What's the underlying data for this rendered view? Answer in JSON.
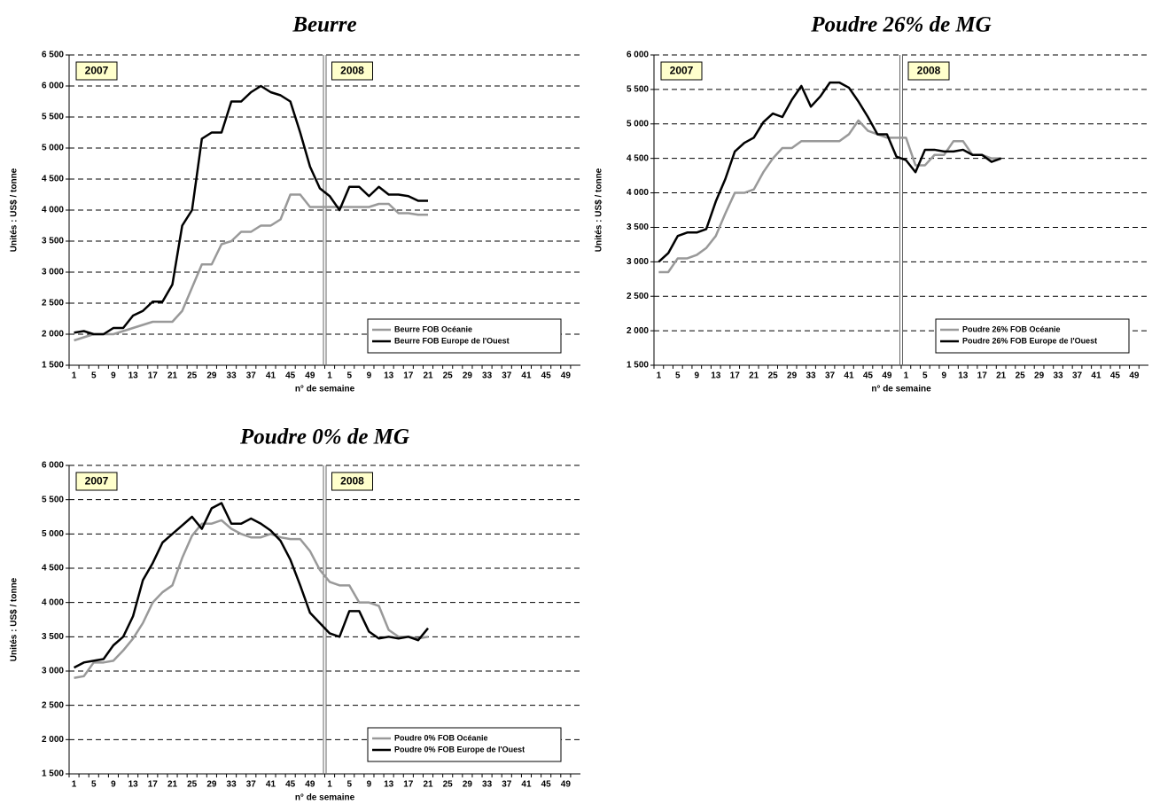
{
  "chart_data": [
    {
      "type": "line",
      "title": "Beurre",
      "x_label": "n° de semaine",
      "y_label": "Unités : US$ / tonne",
      "categories": [
        1,
        null,
        5,
        null,
        9,
        null,
        13,
        null,
        17,
        null,
        21,
        null,
        25,
        null,
        29,
        null,
        33,
        null,
        37,
        null,
        41,
        null,
        45,
        null,
        49,
        null,
        1,
        null,
        5,
        null,
        9,
        null,
        13,
        null,
        17,
        null,
        21,
        null,
        25,
        null,
        29,
        null,
        33,
        null,
        37,
        null,
        41,
        null,
        45,
        null,
        49,
        null
      ],
      "annotations": [
        "2007",
        "2008"
      ],
      "ylim": [
        1500,
        6500
      ],
      "yticks": [
        {
          "value": 1500,
          "label": "1 500"
        },
        {
          "value": 2000,
          "label": "2 000"
        },
        {
          "value": 2500,
          "label": "2 500"
        },
        {
          "value": 3000,
          "label": "3 000"
        },
        {
          "value": 3500,
          "label": "3 500"
        },
        {
          "value": 4000,
          "label": "4 000"
        },
        {
          "value": 4500,
          "label": "4 500"
        },
        {
          "value": 5000,
          "label": "5 000"
        },
        {
          "value": 5500,
          "label": "5 500"
        },
        {
          "value": 6000,
          "label": "6 000"
        },
        {
          "value": 6500,
          "label": "6 500"
        }
      ],
      "grid": true,
      "legend": "lower right",
      "series": [
        {
          "name": "Beurre FOB Océanie",
          "color": "#999999",
          "values": [
            1900,
            1950,
            2000,
            2000,
            2000,
            2050,
            2100,
            2150,
            2200,
            2200,
            2200,
            2375,
            2750,
            3125,
            3125,
            3450,
            3500,
            3650,
            3650,
            3750,
            3750,
            3850,
            4250,
            4250,
            4050,
            4050,
            4050,
            4050,
            4050,
            4050,
            4050,
            4100,
            4100,
            3950,
            3950,
            3925,
            3925,
            null,
            null,
            null,
            null,
            null,
            null,
            null,
            null,
            null,
            null,
            null,
            null,
            null,
            null,
            null
          ]
        },
        {
          "name": "Beurre FOB Europe de l'Ouest",
          "color": "#000000",
          "values": [
            2025,
            2050,
            2000,
            2000,
            2100,
            2100,
            2300,
            2375,
            2525,
            2525,
            2800,
            3750,
            4000,
            5150,
            5250,
            5250,
            5750,
            5750,
            5900,
            6000,
            5900,
            5850,
            5750,
            5250,
            4700,
            4350,
            4225,
            4000,
            4375,
            4375,
            4225,
            4375,
            4250,
            4250,
            4225,
            4150,
            4150,
            null,
            null,
            null,
            null,
            null,
            null,
            null,
            null,
            null,
            null,
            null,
            null,
            null,
            null,
            null
          ]
        }
      ]
    },
    {
      "type": "line",
      "title": "Poudre 26% de MG",
      "x_label": "n° de semaine",
      "y_label": "Unités : US$ / tonne",
      "categories": [
        1,
        null,
        5,
        null,
        9,
        null,
        13,
        null,
        17,
        null,
        21,
        null,
        25,
        null,
        29,
        null,
        33,
        null,
        37,
        null,
        41,
        null,
        45,
        null,
        49,
        null,
        1,
        null,
        5,
        null,
        9,
        null,
        13,
        null,
        17,
        null,
        21,
        null,
        25,
        null,
        29,
        null,
        33,
        null,
        37,
        null,
        41,
        null,
        45,
        null,
        49,
        null
      ],
      "annotations": [
        "2007",
        "2008"
      ],
      "ylim": [
        1500,
        6000
      ],
      "yticks": [
        {
          "value": 1500,
          "label": "1 500"
        },
        {
          "value": 2000,
          "label": "2 000"
        },
        {
          "value": 2500,
          "label": "2 500"
        },
        {
          "value": 3000,
          "label": "3 000"
        },
        {
          "value": 3500,
          "label": "3 500"
        },
        {
          "value": 4000,
          "label": "4 000"
        },
        {
          "value": 4500,
          "label": "4 500"
        },
        {
          "value": 5000,
          "label": "5 000"
        },
        {
          "value": 5500,
          "label": "5 500"
        },
        {
          "value": 6000,
          "label": "6 000"
        }
      ],
      "grid": true,
      "legend": "lower right",
      "series": [
        {
          "name": "Poudre 26% FOB Océanie",
          "color": "#999999",
          "values": [
            2850,
            2850,
            3050,
            3050,
            3100,
            3200,
            3375,
            3700,
            4000,
            4000,
            4050,
            4300,
            4500,
            4650,
            4650,
            4750,
            4750,
            4750,
            4750,
            4750,
            4850,
            5050,
            4900,
            4850,
            4800,
            4800,
            4800,
            4400,
            4400,
            4550,
            4550,
            4750,
            4750,
            4550,
            4550,
            4500,
            4500,
            null,
            null,
            null,
            null,
            null,
            null,
            null,
            null,
            null,
            null,
            null,
            null,
            null,
            null,
            null
          ]
        },
        {
          "name": "Poudre 26% FOB Europe de l'Ouest",
          "color": "#000000",
          "values": [
            3000,
            3125,
            3375,
            3425,
            3425,
            3475,
            3875,
            4200,
            4600,
            4725,
            4800,
            5025,
            5150,
            5100,
            5350,
            5550,
            5250,
            5400,
            5600,
            5600,
            5525,
            5325,
            5100,
            4850,
            4850,
            4525,
            4475,
            4300,
            4625,
            4625,
            4600,
            4600,
            4625,
            4550,
            4550,
            4450,
            4500,
            null,
            null,
            null,
            null,
            null,
            null,
            null,
            null,
            null,
            null,
            null,
            null,
            null,
            null,
            null
          ]
        }
      ]
    },
    {
      "type": "line",
      "title": "Poudre 0% de MG",
      "x_label": "n° de semaine",
      "y_label": "Unités : US$ / tonne",
      "categories": [
        1,
        null,
        5,
        null,
        9,
        null,
        13,
        null,
        17,
        null,
        21,
        null,
        25,
        null,
        29,
        null,
        33,
        null,
        37,
        null,
        41,
        null,
        45,
        null,
        49,
        null,
        1,
        null,
        5,
        null,
        9,
        null,
        13,
        null,
        17,
        null,
        21,
        null,
        25,
        null,
        29,
        null,
        33,
        null,
        37,
        null,
        41,
        null,
        45,
        null,
        49,
        null
      ],
      "annotations": [
        "2007",
        "2008"
      ],
      "ylim": [
        1500,
        6000
      ],
      "yticks": [
        {
          "value": 1500,
          "label": "1 500"
        },
        {
          "value": 2000,
          "label": "2 000"
        },
        {
          "value": 2500,
          "label": "2 500"
        },
        {
          "value": 3000,
          "label": "3 000"
        },
        {
          "value": 3500,
          "label": "3 500"
        },
        {
          "value": 4000,
          "label": "4 000"
        },
        {
          "value": 4500,
          "label": "4 500"
        },
        {
          "value": 5000,
          "label": "5 000"
        },
        {
          "value": 5500,
          "label": "5 500"
        },
        {
          "value": 6000,
          "label": "6 000"
        }
      ],
      "grid": true,
      "legend": "lower right",
      "series": [
        {
          "name": "Poudre 0% FOB Océanie",
          "color": "#999999",
          "values": [
            2900,
            2925,
            3125,
            3125,
            3150,
            3300,
            3475,
            3700,
            4000,
            4150,
            4250,
            4650,
            4975,
            5150,
            5150,
            5200,
            5075,
            5000,
            4950,
            4950,
            5000,
            4950,
            4925,
            4925,
            4750,
            4475,
            4300,
            4250,
            4250,
            4000,
            4000,
            3950,
            3600,
            3500,
            3500,
            3475,
            3500,
            null,
            null,
            null,
            null,
            null,
            null,
            null,
            null,
            null,
            null,
            null,
            null,
            null,
            null,
            null
          ]
        },
        {
          "name": "Poudre 0% FOB Europe de l'Ouest",
          "color": "#000000",
          "values": [
            3050,
            3125,
            3150,
            3175,
            3375,
            3500,
            3800,
            4325,
            4575,
            4875,
            5000,
            5125,
            5250,
            5075,
            5375,
            5450,
            5150,
            5150,
            5225,
            5150,
            5050,
            4900,
            4625,
            4250,
            3850,
            3700,
            3550,
            3500,
            3875,
            3875,
            3575,
            3475,
            3500,
            3475,
            3500,
            3450,
            3625,
            null,
            null,
            null,
            null,
            null,
            null,
            null,
            null,
            null,
            null,
            null,
            null,
            null,
            null,
            null
          ]
        }
      ]
    }
  ]
}
